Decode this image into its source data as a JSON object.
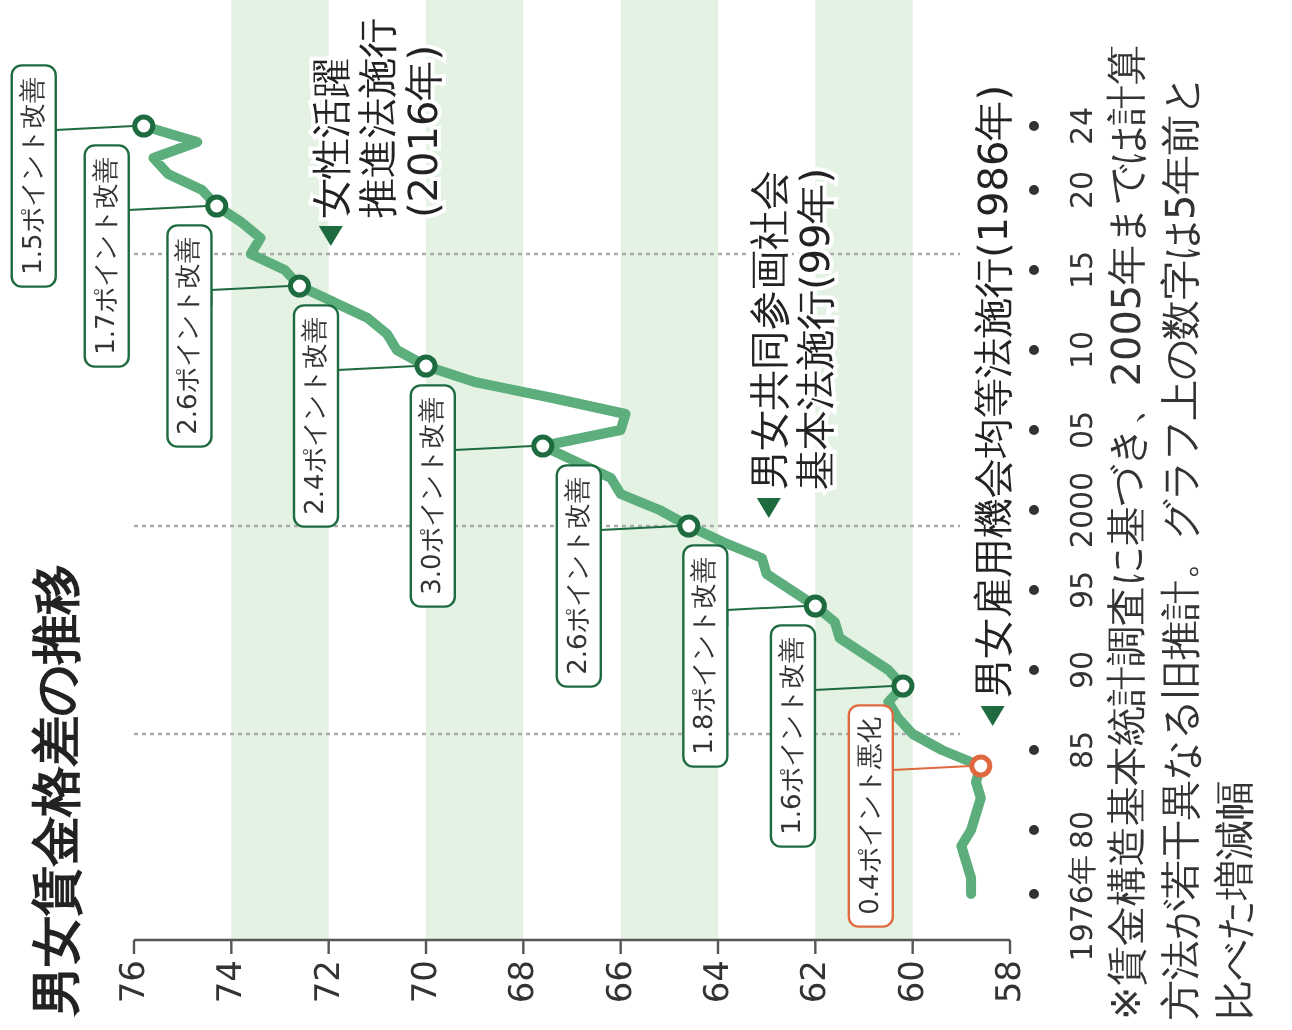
{
  "chart_data": {
    "type": "line",
    "title": "男女賃金格差の推移",
    "series": [
      {
        "color": "#5cae7c",
        "x": [
          58.8,
          58.8,
          58.9,
          59.0,
          58.8,
          58.7,
          58.6,
          58.7,
          58.6,
          59.4,
          60.0,
          60.3,
          60.5,
          60.2,
          60.5,
          61.0,
          61.5,
          61.6,
          62.0,
          62.5,
          63.0,
          63.1,
          63.9,
          64.6,
          65.2,
          66.0,
          66.2,
          66.9,
          67.6,
          66.0,
          65.9,
          67.4,
          69.0,
          70.0,
          70.6,
          70.8,
          71.2,
          71.9,
          72.6,
          72.9,
          73.6,
          73.4,
          73.8,
          74.3,
          74.6,
          75.3,
          75.6,
          74.7,
          75.8
        ],
        "values": [
          1976,
          1977,
          1978,
          1979,
          1980,
          1981,
          1982,
          1983,
          1984,
          1985,
          1986,
          1987,
          1988,
          1989,
          1990,
          1991,
          1992,
          1993,
          1994,
          1995,
          1996,
          1997,
          1998,
          1999,
          2000,
          2001,
          2002,
          2003,
          2004,
          2005,
          2006,
          2007,
          2008,
          2009,
          2010,
          2011,
          2012,
          2013,
          2014,
          2015,
          2016,
          2017,
          2018,
          2019,
          2020,
          2021,
          2022,
          2023,
          2024
        ]
      },
      {
        "type": "scatter",
        "marker": "circle",
        "x": [
          58.6,
          60.2,
          62.0,
          64.6,
          67.6,
          70.0,
          72.6,
          74.3,
          75.8
        ],
        "values": [
          1984,
          1989,
          1994,
          1999,
          2004,
          2009,
          2014,
          2019,
          2024
        ],
        "colors": [
          "#e06a40",
          "#1e6b40",
          "#1e6b40",
          "#1e6b40",
          "#1e6b40",
          "#1e6b40",
          "#1e6b40",
          "#1e6b40",
          "#1e6b40"
        ]
      }
    ],
    "xlim": [
      76,
      58
    ],
    "xticks": [
      76,
      74,
      72,
      70,
      68,
      66,
      64,
      62,
      60,
      58
    ],
    "ylim": [
      1976,
      2024
    ],
    "yticks": [
      {
        "value": 1976,
        "label": "1976年"
      },
      {
        "value": 1980,
        "label": "80"
      },
      {
        "value": 1985,
        "label": "85"
      },
      {
        "value": 1990,
        "label": "90"
      },
      {
        "value": 1995,
        "label": "95"
      },
      {
        "value": 2000,
        "label": "2000"
      },
      {
        "value": 2005,
        "label": "05"
      },
      {
        "value": 2010,
        "label": "10"
      },
      {
        "value": 2015,
        "label": "15"
      },
      {
        "value": 2020,
        "label": "20"
      },
      {
        "value": 2024,
        "label": "24"
      }
    ],
    "bands": [
      {
        "axis": "x",
        "from": 60,
        "to": 62,
        "color": "#e4f2e4"
      },
      {
        "axis": "x",
        "from": 64,
        "to": 66,
        "color": "#e4f2e4"
      },
      {
        "axis": "x",
        "from": 68,
        "to": 70,
        "color": "#e4f2e4"
      },
      {
        "axis": "x",
        "from": 72,
        "to": 74,
        "color": "#e4f2e4"
      }
    ],
    "ref_lines": [
      {
        "axis": "y",
        "value": 1986,
        "label": "男女雇用機会均等法施行(1986年)",
        "color": "#aaaaaa",
        "line_style": "dotted"
      },
      {
        "axis": "y",
        "value": 1999,
        "label": "男女共同参画社会基本法施行(99年)",
        "color": "#aaaaaa",
        "line_style": "dotted"
      },
      {
        "axis": "y",
        "value": 2016,
        "label": "女性活躍推進法施行(2016年)",
        "color": "#aaaaaa",
        "line_style": "dotted"
      }
    ],
    "annotations": [
      {
        "text": "0.4ポイント悪化",
        "x": 58.6,
        "y": 1984
      },
      {
        "text": "1.6ポイント改善",
        "x": 60.2,
        "y": 1989
      },
      {
        "text": "1.8ポイント改善",
        "x": 62.0,
        "y": 1994
      },
      {
        "text": "2.6ポイント改善",
        "x": 64.6,
        "y": 1999
      },
      {
        "text": "3.0ポイント改善",
        "x": 67.6,
        "y": 2004
      },
      {
        "text": "2.4ポイント改善",
        "x": 70.0,
        "y": 2009
      },
      {
        "text": "2.6ポイント改善",
        "x": 72.6,
        "y": 2014
      },
      {
        "text": "1.7ポイント改善",
        "x": 74.3,
        "y": 2019
      },
      {
        "text": "1.5ポイント改善",
        "x": 75.8,
        "y": 2024
      },
      "※賃金構造基本統計調査に基づき、2005年までは計算方法が若干異なる旧推計。グラフ上の数字は5年前と比べた増減幅"
    ]
  }
}
